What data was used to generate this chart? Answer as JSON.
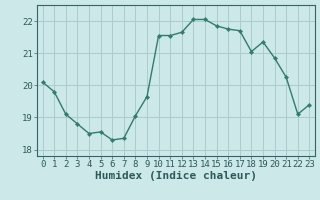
{
  "x": [
    0,
    1,
    2,
    3,
    4,
    5,
    6,
    7,
    8,
    9,
    10,
    11,
    12,
    13,
    14,
    15,
    16,
    17,
    18,
    19,
    20,
    21,
    22,
    23
  ],
  "y": [
    20.1,
    19.8,
    19.1,
    18.8,
    18.5,
    18.55,
    18.3,
    18.35,
    19.05,
    19.65,
    21.55,
    21.55,
    21.65,
    22.05,
    22.05,
    21.85,
    21.75,
    21.7,
    21.05,
    21.35,
    20.85,
    20.25,
    19.1,
    19.4
  ],
  "line_color": "#2e7d6e",
  "marker": "D",
  "marker_size": 2.2,
  "bg_color": "#cce8e8",
  "grid_color": "#aacccc",
  "xlabel": "Humidex (Indice chaleur)",
  "ylim": [
    17.8,
    22.5
  ],
  "xlim": [
    -0.5,
    23.5
  ],
  "yticks": [
    18,
    19,
    20,
    21,
    22
  ],
  "xticks": [
    0,
    1,
    2,
    3,
    4,
    5,
    6,
    7,
    8,
    9,
    10,
    11,
    12,
    13,
    14,
    15,
    16,
    17,
    18,
    19,
    20,
    21,
    22,
    23
  ],
  "tick_fontsize": 6.5,
  "xlabel_fontsize": 8,
  "spine_color": "#336666",
  "line_width": 1.0
}
